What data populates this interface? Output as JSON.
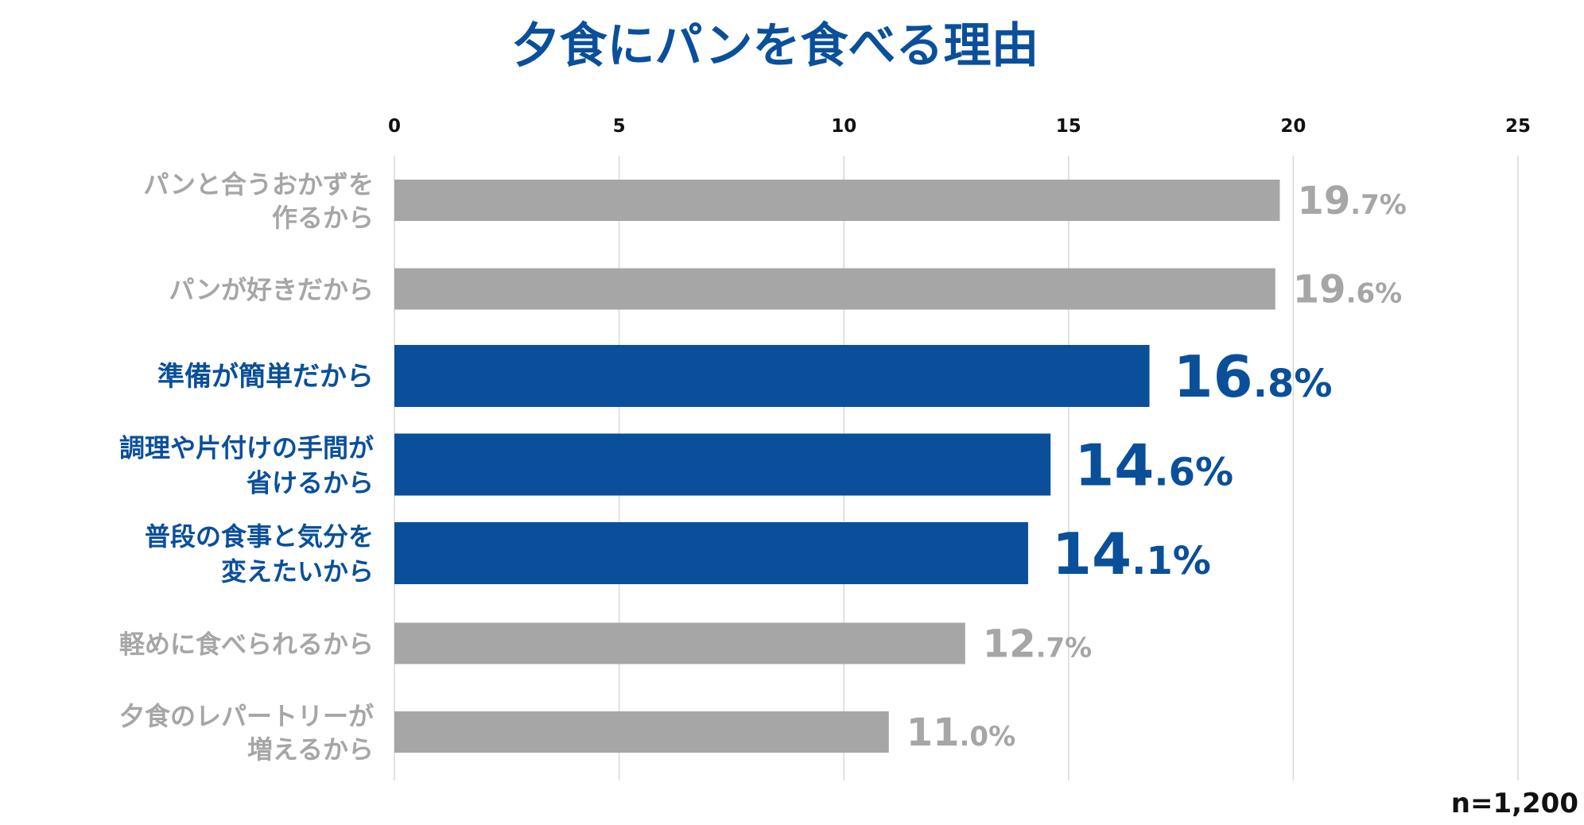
{
  "chart_data": {
    "type": "bar",
    "orientation": "horizontal",
    "title": "夕食にパンを食べる理由",
    "categories": [
      [
        "パンと合うおかずを",
        "作るから"
      ],
      [
        "パンが好きだから"
      ],
      [
        "準備が簡単だから"
      ],
      [
        "調理や片付けの手間が",
        "省けるから"
      ],
      [
        "普段の食事と気分を",
        "変えたいから"
      ],
      [
        "軽めに食べられるから"
      ],
      [
        "夕食のレパートリーが",
        "増えるから"
      ]
    ],
    "values": [
      19.7,
      19.6,
      16.8,
      14.6,
      14.1,
      12.7,
      11.0
    ],
    "value_labels": [
      "19.7%",
      "19.6%",
      "16.8%",
      "14.6%",
      "14.1%",
      "12.7%",
      "11.0%"
    ],
    "highlighted": [
      false,
      false,
      true,
      true,
      true,
      false,
      false
    ],
    "xlim": [
      0,
      25
    ],
    "x_ticks": [
      "0",
      "5",
      "10",
      "15",
      "20",
      "25"
    ],
    "x_axis_position": "top",
    "grid": true,
    "note": "n=1,200",
    "colors": {
      "title": "#0a4f9a",
      "highlight_bar": "#0a4f9a",
      "highlight_text": "#0a4f9a",
      "normal_bar": "#a6a6a6",
      "normal_text": "#a6a6a6",
      "grid": "#d9d9d9"
    }
  }
}
